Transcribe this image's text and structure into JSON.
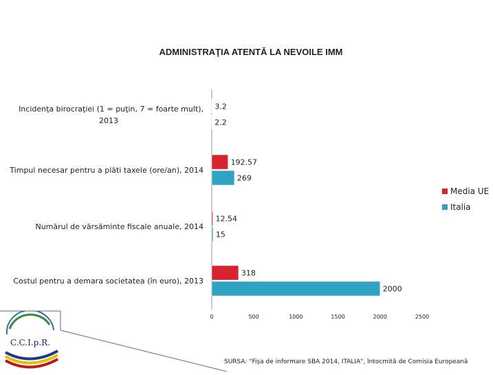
{
  "chart_data": {
    "type": "bar",
    "orientation": "horizontal",
    "title": "ADMINISTRAŢIA ATENTĂ LA NEVOILE IMM",
    "categories": [
      [
        "Incidenţa  birocraţiei (1 = puţin,  7 = foarte mult),",
        "2013"
      ],
      [
        "Timpul necesar pentru a plăti taxele (ore/an), 2014"
      ],
      [
        "Numărul de vărsăminte fiscale anuale, 2014"
      ],
      [
        "Costul pentru a demara societatea (în euro), 2013"
      ]
    ],
    "series": [
      {
        "name": "Media UE",
        "color": "#d7232f",
        "values": [
          3.2,
          192.57,
          12.54,
          318
        ],
        "labels": [
          "3.2",
          "192.57",
          "12.54",
          "318"
        ]
      },
      {
        "name": "Italia",
        "color": "#2ea3c2",
        "values": [
          2.2,
          269,
          15,
          2000
        ],
        "labels": [
          "2.2",
          "269",
          "15",
          "2000"
        ]
      }
    ],
    "xlim": [
      0,
      2500
    ],
    "xticks": [
      0,
      500,
      1000,
      1500,
      2000,
      2500
    ],
    "xtick_labels": [
      "0",
      "500",
      "1000",
      "1500",
      "2000",
      "2500"
    ],
    "legend_position": "right",
    "grid": false
  },
  "source": "SURSA: \"Fişa de  informare SBA 2014, ITALIA\", întocmită de Comisia Europeană",
  "logo": {
    "text": "C.C.I.p.R.",
    "colors": [
      "#3a8a3a",
      "#e8c000",
      "#c01818",
      "#1d3a8a"
    ]
  }
}
